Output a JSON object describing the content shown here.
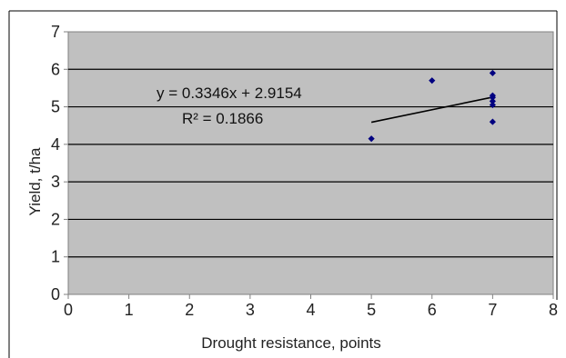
{
  "chart_data": {
    "type": "scatter",
    "title": "",
    "xlabel": "Drought resistance, points",
    "ylabel": "Yield, t/ha",
    "xlim": [
      0,
      8
    ],
    "ylim": [
      0,
      7
    ],
    "x_ticks": [
      "0",
      "1",
      "2",
      "3",
      "4",
      "5",
      "6",
      "7",
      "8"
    ],
    "y_ticks": [
      "0",
      "1",
      "2",
      "3",
      "4",
      "5",
      "6",
      "7"
    ],
    "grid": "horizontal",
    "legend": "none",
    "plot_background": "#c0c0c0",
    "marker_color": "#000080",
    "trendline_color": "#000000",
    "series": [
      {
        "x": [
          5,
          6,
          7,
          7,
          7,
          7,
          7,
          7
        ],
        "y": [
          4.15,
          5.7,
          5.9,
          5.3,
          5.25,
          5.15,
          5.05,
          4.6
        ]
      }
    ],
    "trendline": {
      "type": "linear",
      "slope": 0.3346,
      "intercept": 2.9154,
      "x_range": [
        5,
        7
      ]
    },
    "annotations": {
      "equation": "y = 0.3346x + 2.9154",
      "r_squared": "R² = 0.1866"
    }
  }
}
